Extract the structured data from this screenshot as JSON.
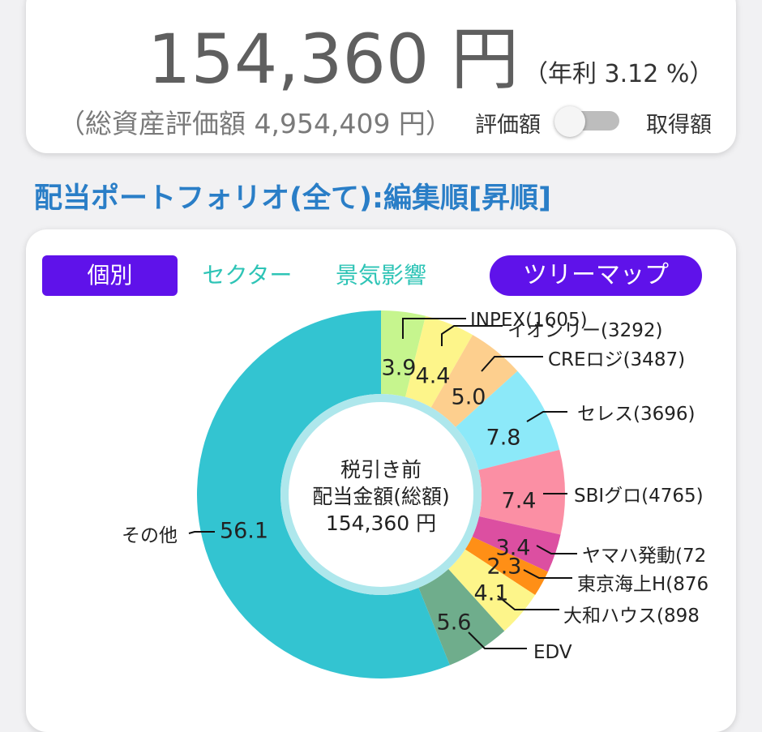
{
  "summary": {
    "dividend_amount": "154,360 円",
    "annual_yield": "（年利 3.12 %）",
    "total_valuation": "（総資産評価額 4,954,409 円）",
    "toggle_left_label": "評価額",
    "toggle_right_label": "取得額"
  },
  "section_title": "配当ポートフォリオ(全て):編集順[昇順]",
  "tabs": {
    "individual": "個別",
    "sector": "セクター",
    "economy": "景気影響",
    "treemap": "ツリーマップ"
  },
  "center_label": {
    "line1": "税引き前",
    "line2": "配当金額(総額)",
    "line3": "154,360 円"
  },
  "chart_data": {
    "type": "pie",
    "labels": [
      "INPEX(1605)",
      "イオンリー(3292)",
      "CREロジ(3487)",
      "セレス(3696)",
      "SBIグロ(4765)",
      "ヤマハ発動(72",
      "東京海上H(876",
      "大和ハウス(898",
      "EDV",
      "その他"
    ],
    "values": [
      3.9,
      4.4,
      5.0,
      7.8,
      7.4,
      3.4,
      2.3,
      4.1,
      5.6,
      56.1
    ],
    "colors": [
      "#c6f58e",
      "#fdf58a",
      "#fdcf8e",
      "#8ce9f9",
      "#fb8fa4",
      "#dc4fa1",
      "#ff8f16",
      "#fdf58a",
      "#6fad8c",
      "#33c4d1"
    ]
  }
}
